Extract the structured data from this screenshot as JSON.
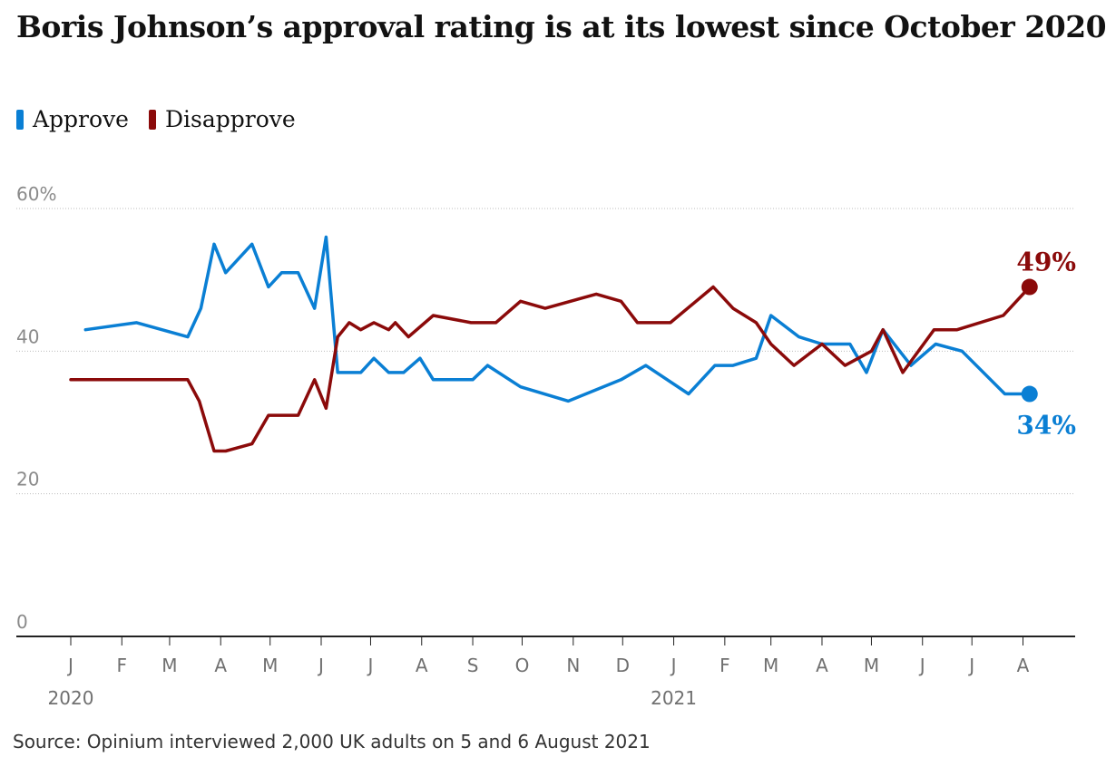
{
  "title": "Boris Johnson’s approval rating is at its lowest since October 2020",
  "legend": [
    {
      "label": "Approve",
      "color": "#0a7fd4"
    },
    {
      "label": "Disapprove",
      "color": "#8b0a0a"
    }
  ],
  "source": "Source: Opinium interviewed 2,000 UK adults on 5 and 6 August 2021",
  "chart_data": {
    "type": "line",
    "ylim": [
      0,
      60
    ],
    "yticks": [
      {
        "value": 0,
        "label": "0"
      },
      {
        "value": 20,
        "label": "20"
      },
      {
        "value": 40,
        "label": "40"
      },
      {
        "value": 60,
        "label": "60%"
      }
    ],
    "grid": true,
    "x_range": [
      "2020-01-01",
      "2021-08-20"
    ],
    "xticks": [
      {
        "date": "2020-01-01",
        "label": "J"
      },
      {
        "date": "2020-02-01",
        "label": "F"
      },
      {
        "date": "2020-03-01",
        "label": "M"
      },
      {
        "date": "2020-04-01",
        "label": "A"
      },
      {
        "date": "2020-05-01",
        "label": "M"
      },
      {
        "date": "2020-06-01",
        "label": "J"
      },
      {
        "date": "2020-07-01",
        "label": "J"
      },
      {
        "date": "2020-08-01",
        "label": "A"
      },
      {
        "date": "2020-09-01",
        "label": "S"
      },
      {
        "date": "2020-10-01",
        "label": "O"
      },
      {
        "date": "2020-11-01",
        "label": "N"
      },
      {
        "date": "2020-12-01",
        "label": "D"
      },
      {
        "date": "2021-01-01",
        "label": "J"
      },
      {
        "date": "2021-02-01",
        "label": "F"
      },
      {
        "date": "2021-03-01",
        "label": "M"
      },
      {
        "date": "2021-04-01",
        "label": "A"
      },
      {
        "date": "2021-05-01",
        "label": "M"
      },
      {
        "date": "2021-06-01",
        "label": "J"
      },
      {
        "date": "2021-07-01",
        "label": "J"
      },
      {
        "date": "2021-08-01",
        "label": "A"
      }
    ],
    "year_labels": [
      {
        "date": "2020-01-01",
        "label": "2020"
      },
      {
        "date": "2021-01-01",
        "label": "2021"
      }
    ],
    "series": [
      {
        "name": "Approve",
        "color": "#0a7fd4",
        "end_label": "34%",
        "points": [
          [
            "2020-01-10",
            43
          ],
          [
            "2020-02-10",
            44
          ],
          [
            "2020-03-12",
            42
          ],
          [
            "2020-03-20",
            46
          ],
          [
            "2020-03-28",
            55
          ],
          [
            "2020-04-04",
            51
          ],
          [
            "2020-04-20",
            55
          ],
          [
            "2020-04-30",
            49
          ],
          [
            "2020-05-08",
            51
          ],
          [
            "2020-05-18",
            51
          ],
          [
            "2020-05-28",
            46
          ],
          [
            "2020-06-04",
            56
          ],
          [
            "2020-06-11",
            37
          ],
          [
            "2020-06-25",
            37
          ],
          [
            "2020-07-03",
            39
          ],
          [
            "2020-07-12",
            37
          ],
          [
            "2020-07-21",
            37
          ],
          [
            "2020-07-31",
            39
          ],
          [
            "2020-08-08",
            36
          ],
          [
            "2020-09-01",
            36
          ],
          [
            "2020-09-10",
            38
          ],
          [
            "2020-09-30",
            35
          ],
          [
            "2020-10-29",
            33
          ],
          [
            "2020-11-30",
            36
          ],
          [
            "2020-12-15",
            38
          ],
          [
            "2021-01-10",
            34
          ],
          [
            "2021-01-26",
            38
          ],
          [
            "2021-02-06",
            38
          ],
          [
            "2021-02-20",
            39
          ],
          [
            "2021-03-01",
            45
          ],
          [
            "2021-03-18",
            42
          ],
          [
            "2021-04-01",
            41
          ],
          [
            "2021-04-18",
            41
          ],
          [
            "2021-04-28",
            37
          ],
          [
            "2021-05-08",
            43
          ],
          [
            "2021-05-25",
            38
          ],
          [
            "2021-06-09",
            41
          ],
          [
            "2021-06-25",
            40
          ],
          [
            "2021-07-21",
            34
          ],
          [
            "2021-08-05",
            34
          ]
        ]
      },
      {
        "name": "Disapprove",
        "color": "#8b0a0a",
        "end_label": "49%",
        "points": [
          [
            "2020-01-01",
            36
          ],
          [
            "2020-03-12",
            36
          ],
          [
            "2020-03-19",
            33
          ],
          [
            "2020-03-28",
            26
          ],
          [
            "2020-04-04",
            26
          ],
          [
            "2020-04-20",
            27
          ],
          [
            "2020-04-30",
            31
          ],
          [
            "2020-05-08",
            31
          ],
          [
            "2020-05-18",
            31
          ],
          [
            "2020-05-28",
            36
          ],
          [
            "2020-06-04",
            32
          ],
          [
            "2020-06-11",
            42
          ],
          [
            "2020-06-18",
            44
          ],
          [
            "2020-06-25",
            43
          ],
          [
            "2020-07-03",
            44
          ],
          [
            "2020-07-12",
            43
          ],
          [
            "2020-07-16",
            44
          ],
          [
            "2020-07-24",
            42
          ],
          [
            "2020-08-08",
            45
          ],
          [
            "2020-08-31",
            44
          ],
          [
            "2020-09-15",
            44
          ],
          [
            "2020-09-30",
            47
          ],
          [
            "2020-10-15",
            46
          ],
          [
            "2020-11-15",
            48
          ],
          [
            "2020-11-30",
            47
          ],
          [
            "2020-12-10",
            44
          ],
          [
            "2020-12-30",
            44
          ],
          [
            "2021-01-25",
            49
          ],
          [
            "2021-02-06",
            46
          ],
          [
            "2021-02-20",
            44
          ],
          [
            "2021-03-01",
            41
          ],
          [
            "2021-03-15",
            38
          ],
          [
            "2021-04-01",
            41
          ],
          [
            "2021-04-15",
            38
          ],
          [
            "2021-05-01",
            40
          ],
          [
            "2021-05-08",
            43
          ],
          [
            "2021-05-20",
            37
          ],
          [
            "2021-06-08",
            43
          ],
          [
            "2021-06-22",
            43
          ],
          [
            "2021-07-20",
            45
          ],
          [
            "2021-08-05",
            49
          ]
        ]
      }
    ]
  }
}
